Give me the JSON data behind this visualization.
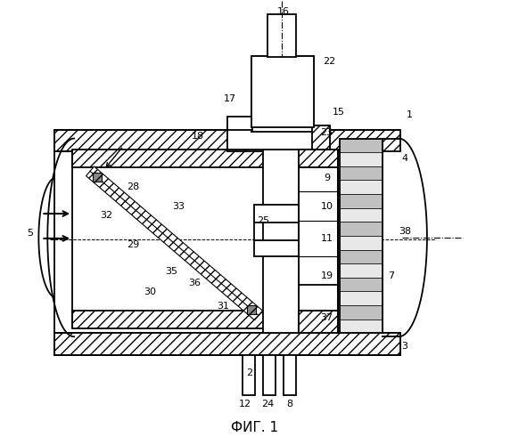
{
  "title": "ФИГ. 1",
  "bg_color": "#ffffff",
  "fig_width": 5.72,
  "fig_height": 5.0,
  "dpi": 100
}
